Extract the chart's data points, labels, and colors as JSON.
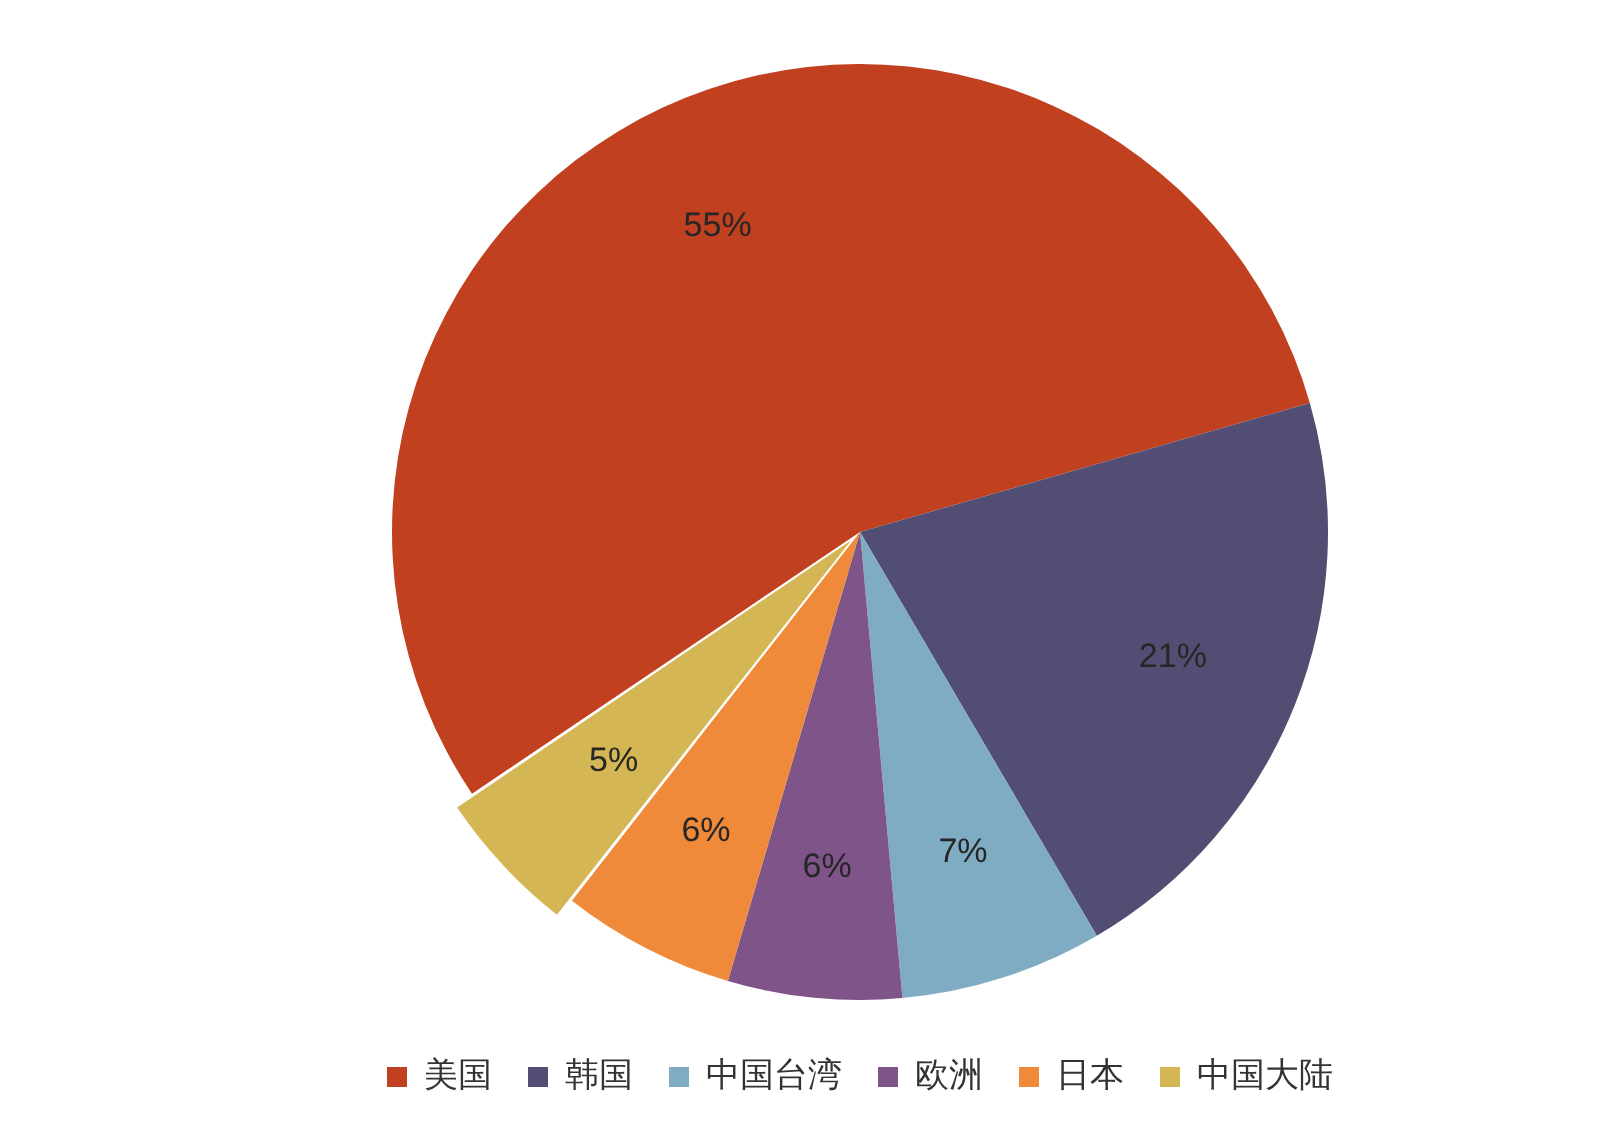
{
  "chart_data": {
    "type": "pie",
    "categories": [
      "美国",
      "韩国",
      "中国台湾",
      "欧洲",
      "日本",
      "中国大陆"
    ],
    "values": [
      55,
      21,
      7,
      6,
      6,
      5
    ],
    "colors": [
      "#c1401f",
      "#524e73",
      "#7facc2",
      "#7f5488",
      "#ef8a3a",
      "#d5b654"
    ],
    "value_labels": [
      "55%",
      "21%",
      "7%",
      "6%",
      "6%",
      "5%"
    ],
    "legend": "bottom"
  }
}
